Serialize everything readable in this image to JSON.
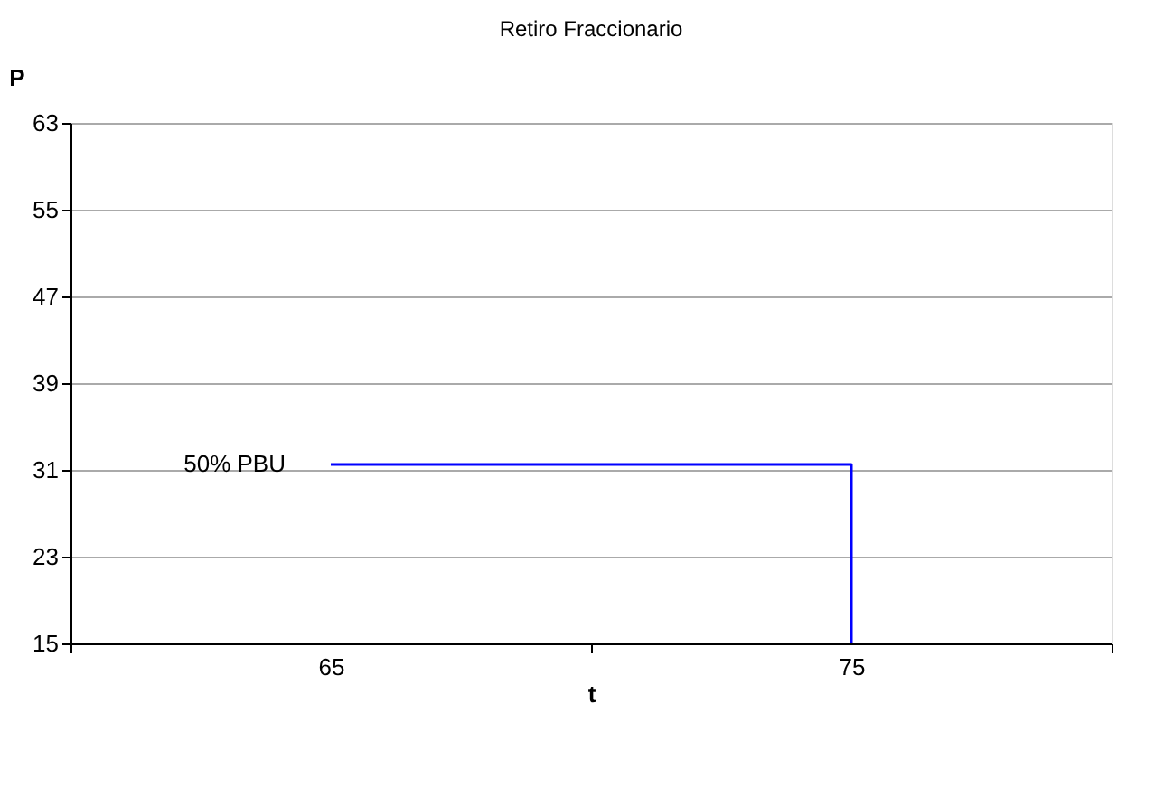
{
  "chart_data": {
    "type": "line",
    "title": "Retiro Fraccionario",
    "xlabel": "t",
    "ylabel": "P",
    "categories": [
      "65",
      "75"
    ],
    "series": [
      {
        "color": "#0000ff",
        "x": [
          "65",
          "75",
          "75"
        ],
        "values": [
          31.5,
          31.5,
          15
        ]
      }
    ],
    "ylim": [
      15,
      63
    ],
    "yticks": [
      15,
      23,
      31,
      39,
      47,
      55,
      63
    ],
    "grid": "y",
    "legend": false,
    "marker": "none",
    "line_style": "solid",
    "annotations": [
      {
        "text": "50% PBU",
        "x": "65",
        "y": 31.5
      }
    ]
  }
}
